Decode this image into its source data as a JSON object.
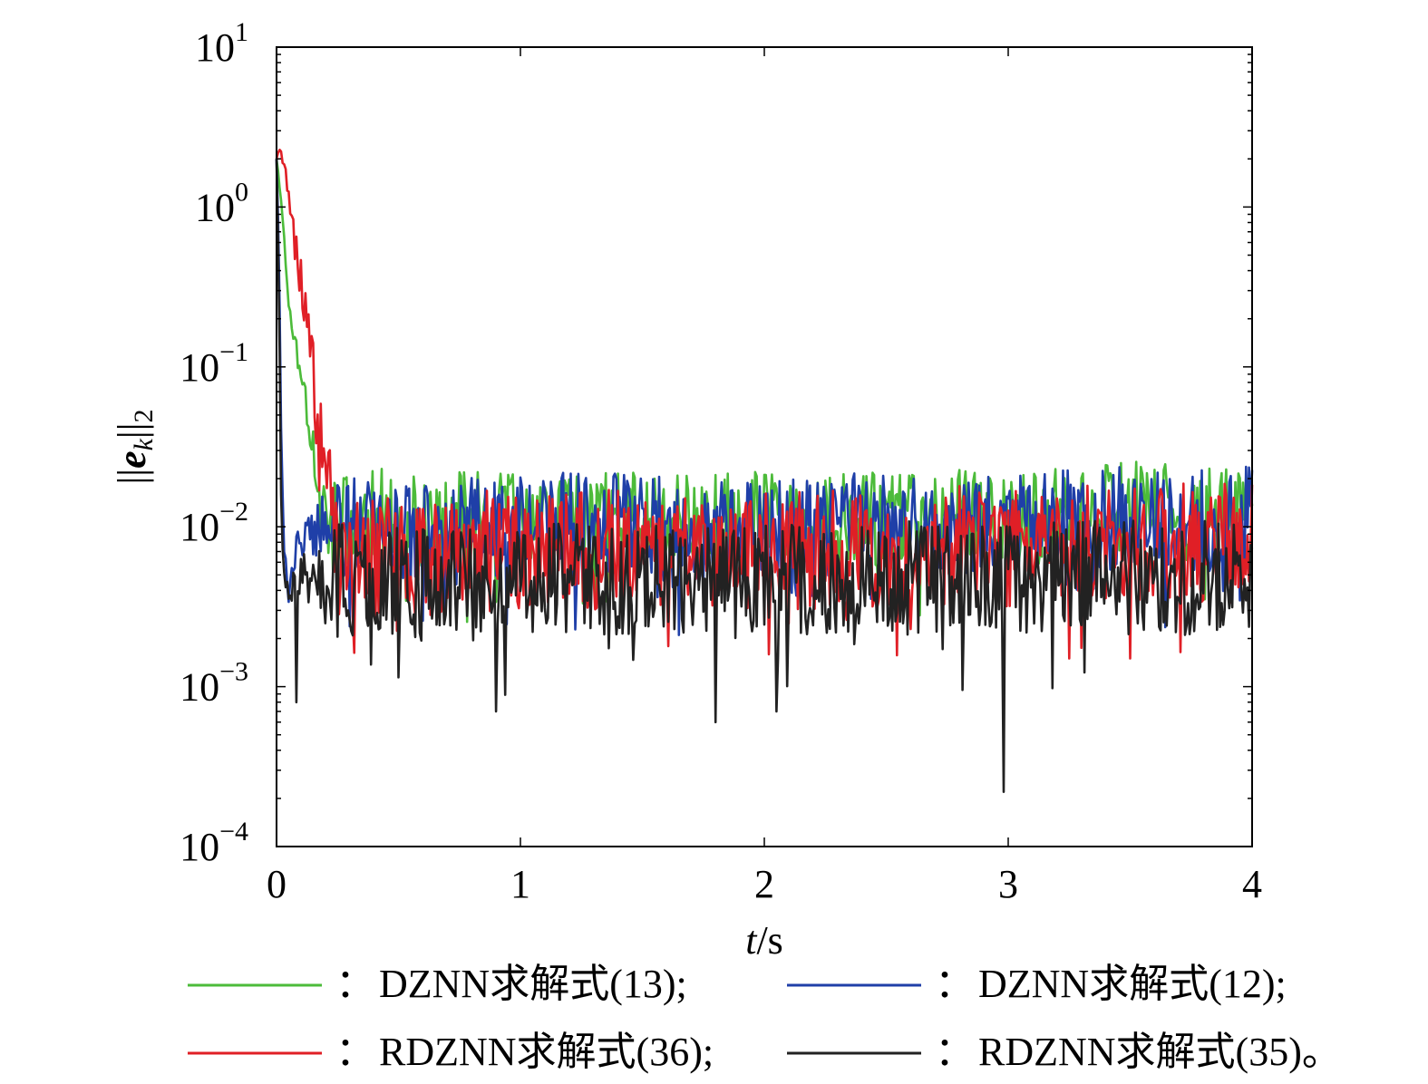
{
  "chart_data": {
    "type": "line",
    "title": "",
    "xlabel": {
      "var": "t",
      "unit": "/s"
    },
    "ylabel": {
      "open": "||",
      "var": "e",
      "sub": "k",
      "close": "||",
      "norm_sub": "2"
    },
    "x_ticks": [
      "0",
      "1",
      "2",
      "3",
      "4"
    ],
    "y_ticks": [
      {
        "base": "10",
        "exp": "1"
      },
      {
        "base": "10",
        "exp": "0"
      },
      {
        "base": "10",
        "exp": "−1"
      },
      {
        "base": "10",
        "exp": "−2"
      },
      {
        "base": "10",
        "exp": "−3"
      },
      {
        "base": "10",
        "exp": "−4"
      }
    ],
    "xlim": [
      0,
      4
    ],
    "ylim": [
      0.0001,
      10
    ],
    "yscale": "log",
    "grid": false,
    "legend_position": "bottom",
    "legend_separator": "：",
    "series": [
      {
        "name": "DZNN求解式(13);",
        "color": "#4cbb3a",
        "x": [
          0,
          0.01,
          0.03,
          0.05,
          0.07,
          0.08,
          0.1,
          0.12,
          0.14,
          0.16,
          0.18,
          0.2,
          0.25,
          0.3,
          0.4,
          0.5,
          0.75,
          1.0,
          1.25,
          1.5,
          1.75,
          2.0,
          2.25,
          2.5,
          2.75,
          3.0,
          3.25,
          3.5,
          3.75,
          4.0
        ],
        "y": [
          2.0,
          1.5,
          0.7,
          0.25,
          0.18,
          0.15,
          0.09,
          0.06,
          0.045,
          0.03,
          0.02,
          0.012,
          0.01,
          0.012,
          0.013,
          0.012,
          0.012,
          0.012,
          0.012,
          0.012,
          0.012,
          0.012,
          0.012,
          0.012,
          0.013,
          0.012,
          0.013,
          0.014,
          0.013,
          0.013
        ],
        "noise": 0.3
      },
      {
        "name": "DZNN求解式(12);",
        "color": "#1f3fa8",
        "x": [
          0,
          0.01,
          0.02,
          0.03,
          0.05,
          0.08,
          0.12,
          0.2,
          0.3,
          0.5,
          0.75,
          1.0,
          1.25,
          1.5,
          1.75,
          2.0,
          2.25,
          2.5,
          2.75,
          3.0,
          3.25,
          3.5,
          3.75,
          4.0
        ],
        "y": [
          2.0,
          0.5,
          0.03,
          0.008,
          0.004,
          0.007,
          0.009,
          0.01,
          0.011,
          0.01,
          0.01,
          0.011,
          0.011,
          0.011,
          0.01,
          0.01,
          0.011,
          0.011,
          0.011,
          0.011,
          0.012,
          0.012,
          0.012,
          0.012
        ],
        "noise": 0.33
      },
      {
        "name": "RDZNN求解式(36);",
        "color": "#e01f26",
        "x": [
          0,
          0.01,
          0.02,
          0.04,
          0.06,
          0.08,
          0.1,
          0.12,
          0.14,
          0.16,
          0.18,
          0.2,
          0.22,
          0.25,
          0.3,
          0.4,
          0.5,
          0.75,
          1.0,
          1.25,
          1.5,
          1.75,
          2.0,
          2.25,
          2.5,
          2.75,
          3.0,
          3.25,
          3.5,
          3.75,
          4.0
        ],
        "y": [
          2.0,
          2.3,
          2.2,
          1.6,
          0.9,
          0.55,
          0.35,
          0.22,
          0.13,
          0.08,
          0.045,
          0.025,
          0.015,
          0.009,
          0.007,
          0.007,
          0.007,
          0.0075,
          0.008,
          0.0078,
          0.0078,
          0.0078,
          0.0078,
          0.008,
          0.008,
          0.0082,
          0.0082,
          0.0085,
          0.0085,
          0.0085,
          0.0088
        ],
        "noise": 0.38
      },
      {
        "name": "RDZNN求解式(35)。",
        "color": "#222222",
        "x": [
          0,
          0.01,
          0.02,
          0.03,
          0.05,
          0.08,
          0.12,
          0.2,
          0.3,
          0.5,
          0.75,
          1.0,
          1.25,
          1.5,
          1.75,
          2.0,
          2.25,
          2.5,
          2.75,
          3.0,
          3.25,
          3.5,
          3.75,
          4.0
        ],
        "y": [
          2.0,
          0.3,
          0.01,
          0.005,
          0.004,
          0.0045,
          0.005,
          0.005,
          0.005,
          0.0048,
          0.0048,
          0.005,
          0.005,
          0.005,
          0.005,
          0.005,
          0.005,
          0.0052,
          0.0052,
          0.0052,
          0.0052,
          0.0052,
          0.0052,
          0.0052
        ],
        "noise": 0.36,
        "spikes": [
          [
            0.08,
            0.0008
          ],
          [
            0.9,
            0.0007
          ],
          [
            1.8,
            0.0006
          ],
          [
            2.05,
            0.0007
          ],
          [
            2.98,
            0.00022
          ]
        ]
      }
    ]
  }
}
